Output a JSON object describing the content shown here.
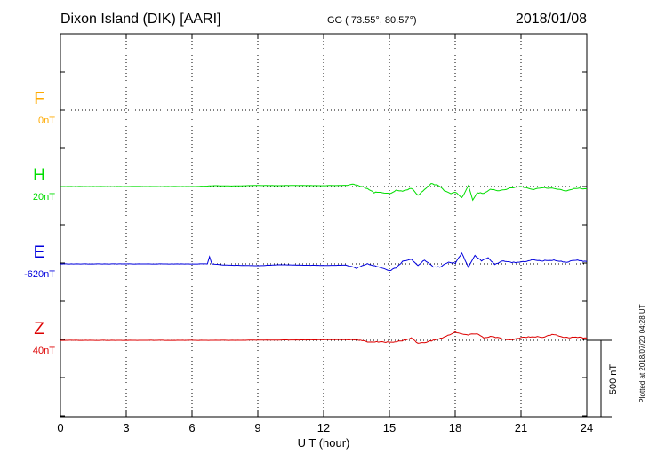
{
  "header": {
    "station": "Dixon Island (DIK)  [AARI]",
    "coords": "GG ( 73.55°,  80.57°)",
    "date": "2018/01/08",
    "plotted": "Plotted at 2018/07/20 04:28 UT"
  },
  "scale_bar": {
    "label": "500 nT",
    "value": 500
  },
  "chart_data": {
    "type": "line",
    "xlabel": "U T (hour)",
    "xlim": [
      0,
      24
    ],
    "xticks": [
      0,
      3,
      6,
      9,
      12,
      15,
      18,
      21,
      24
    ],
    "xtick_labels": [
      "0",
      "3",
      "6",
      "9",
      "12",
      "15",
      "18",
      "21",
      "24"
    ],
    "grid": true,
    "series": [
      {
        "name": "F",
        "baseline_label": "0nT",
        "color": "#ffaa00",
        "points": []
      },
      {
        "name": "H",
        "baseline_label": "20nT",
        "color": "#00dd00",
        "points": [
          [
            0,
            0
          ],
          [
            1,
            0
          ],
          [
            2,
            0
          ],
          [
            3,
            0
          ],
          [
            4,
            0
          ],
          [
            5,
            0
          ],
          [
            6,
            0
          ],
          [
            6.7,
            3
          ],
          [
            7,
            5
          ],
          [
            8,
            4
          ],
          [
            9,
            7
          ],
          [
            10,
            6
          ],
          [
            11,
            7
          ],
          [
            12,
            6
          ],
          [
            13,
            8
          ],
          [
            13.3,
            18
          ],
          [
            13.6,
            4
          ],
          [
            14,
            -12
          ],
          [
            14.3,
            -40
          ],
          [
            14.6,
            -36
          ],
          [
            15,
            -48
          ],
          [
            15.3,
            -25
          ],
          [
            15.6,
            -30
          ],
          [
            16,
            -10
          ],
          [
            16.3,
            -58
          ],
          [
            16.6,
            -20
          ],
          [
            16.9,
            18
          ],
          [
            17.2,
            10
          ],
          [
            17.5,
            -25
          ],
          [
            17.8,
            -45
          ],
          [
            18,
            -35
          ],
          [
            18.3,
            -75
          ],
          [
            18.6,
            5
          ],
          [
            18.8,
            -90
          ],
          [
            19,
            -40
          ],
          [
            19.3,
            -45
          ],
          [
            19.6,
            -18
          ],
          [
            20,
            -30
          ],
          [
            20.5,
            -10
          ],
          [
            21,
            0
          ],
          [
            21.5,
            -20
          ],
          [
            22,
            -8
          ],
          [
            22.5,
            -10
          ],
          [
            23,
            -30
          ],
          [
            23.5,
            -10
          ],
          [
            24,
            -15
          ]
        ]
      },
      {
        "name": "E",
        "baseline_label": "-620nT",
        "color": "#0000dd",
        "points": [
          [
            0,
            0
          ],
          [
            1,
            0
          ],
          [
            2,
            0
          ],
          [
            3,
            0
          ],
          [
            4,
            0
          ],
          [
            5,
            0
          ],
          [
            6,
            0
          ],
          [
            6.7,
            0
          ],
          [
            6.8,
            48
          ],
          [
            6.9,
            0
          ],
          [
            7.5,
            -8
          ],
          [
            8.5,
            -10
          ],
          [
            9,
            -12
          ],
          [
            10,
            -5
          ],
          [
            11,
            -8
          ],
          [
            12,
            -10
          ],
          [
            13,
            -8
          ],
          [
            13.5,
            -28
          ],
          [
            14,
            0
          ],
          [
            14.5,
            -18
          ],
          [
            15,
            -45
          ],
          [
            15.3,
            -25
          ],
          [
            15.6,
            15
          ],
          [
            16,
            30
          ],
          [
            16.3,
            -8
          ],
          [
            16.6,
            25
          ],
          [
            17,
            -20
          ],
          [
            17.3,
            -20
          ],
          [
            17.7,
            10
          ],
          [
            18,
            5
          ],
          [
            18.3,
            70
          ],
          [
            18.6,
            -20
          ],
          [
            18.9,
            55
          ],
          [
            19.2,
            20
          ],
          [
            19.5,
            40
          ],
          [
            19.8,
            -5
          ],
          [
            20.2,
            22
          ],
          [
            20.5,
            10
          ],
          [
            21,
            12
          ],
          [
            21.5,
            25
          ],
          [
            22,
            20
          ],
          [
            22.5,
            25
          ],
          [
            23,
            10
          ],
          [
            23.5,
            25
          ],
          [
            24,
            15
          ]
        ]
      },
      {
        "name": "Z",
        "baseline_label": "40nT",
        "color": "#dd0000",
        "points": [
          [
            0,
            0
          ],
          [
            2,
            0
          ],
          [
            4,
            0
          ],
          [
            6,
            0
          ],
          [
            8,
            0
          ],
          [
            10,
            2
          ],
          [
            12,
            4
          ],
          [
            13,
            5
          ],
          [
            13.5,
            5
          ],
          [
            14,
            -10
          ],
          [
            15,
            -12
          ],
          [
            15.5,
            -6
          ],
          [
            16,
            15
          ],
          [
            16.3,
            -20
          ],
          [
            16.6,
            -14
          ],
          [
            17,
            0
          ],
          [
            17.5,
            20
          ],
          [
            18,
            55
          ],
          [
            18.3,
            40
          ],
          [
            18.6,
            35
          ],
          [
            19,
            45
          ],
          [
            19.3,
            15
          ],
          [
            19.6,
            25
          ],
          [
            20,
            15
          ],
          [
            20.5,
            0
          ],
          [
            21,
            18
          ],
          [
            21.5,
            24
          ],
          [
            22,
            20
          ],
          [
            22.5,
            40
          ],
          [
            23,
            18
          ],
          [
            23.5,
            20
          ],
          [
            24,
            15
          ]
        ]
      }
    ]
  }
}
